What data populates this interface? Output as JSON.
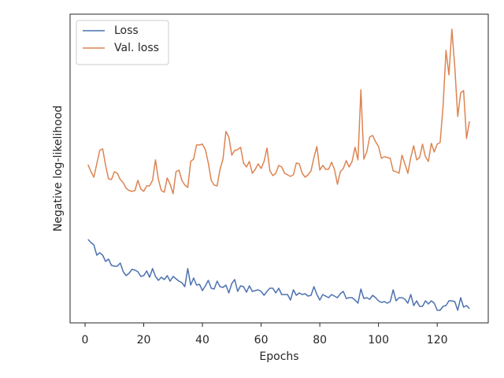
{
  "chart_data": {
    "type": "line",
    "xlabel": "Epochs",
    "ylabel": "Negative log-likelihood",
    "x": [
      1,
      2,
      3,
      4,
      5,
      6,
      7,
      8,
      9,
      10,
      11,
      12,
      13,
      14,
      15,
      16,
      17,
      18,
      19,
      20,
      21,
      22,
      23,
      24,
      25,
      26,
      27,
      28,
      29,
      30,
      31,
      32,
      33,
      34,
      35,
      36,
      37,
      38,
      39,
      40,
      41,
      42,
      43,
      44,
      45,
      46,
      47,
      48,
      49,
      50,
      51,
      52,
      53,
      54,
      55,
      56,
      57,
      58,
      59,
      60,
      61,
      62,
      63,
      64,
      65,
      66,
      67,
      68,
      69,
      70,
      71,
      72,
      73,
      74,
      75,
      76,
      77,
      78,
      79,
      80,
      81,
      82,
      83,
      84,
      85,
      86,
      87,
      88,
      89,
      90,
      91,
      92,
      93,
      94,
      95,
      96,
      97,
      98,
      99,
      100,
      101,
      102,
      103,
      104,
      105,
      106,
      107,
      108,
      109,
      110,
      111,
      112,
      113,
      114,
      115,
      116,
      117,
      118,
      119,
      120,
      121,
      122,
      123,
      124,
      125,
      126,
      127,
      128,
      129,
      130,
      131
    ],
    "series": [
      {
        "name": "Loss",
        "color": "#4c72b0",
        "values": [
          106,
          102,
          99,
          86,
          89,
          86,
          78,
          81,
          73,
          72,
          72,
          76,
          65,
          60,
          63,
          68,
          67,
          65,
          59,
          60,
          66,
          58,
          69,
          59,
          54,
          58,
          55,
          60,
          53,
          59,
          56,
          53,
          51,
          46,
          69,
          48,
          57,
          48,
          49,
          41,
          47,
          54,
          44,
          43,
          53,
          46,
          45,
          48,
          38,
          50,
          55,
          40,
          47,
          46,
          39,
          47,
          40,
          41,
          42,
          40,
          35,
          40,
          44,
          44,
          38,
          44,
          36,
          36,
          36,
          29,
          42,
          35,
          38,
          36,
          37,
          34,
          35,
          46,
          36,
          29,
          36,
          34,
          32,
          36,
          34,
          32,
          37,
          40,
          31,
          32,
          32,
          29,
          25,
          43,
          31,
          32,
          30,
          35,
          32,
          28,
          26,
          27,
          25,
          27,
          42,
          28,
          32,
          32,
          30,
          25,
          36,
          22,
          28,
          21,
          21,
          28,
          24,
          28,
          25,
          16,
          16,
          21,
          22,
          28,
          28,
          27,
          16,
          32,
          20,
          22,
          18
        ]
      },
      {
        "name": "Val. loss",
        "color": "#dd8452",
        "values": [
          201,
          192,
          185,
          202,
          219,
          221,
          200,
          183,
          182,
          192,
          190,
          182,
          178,
          171,
          168,
          167,
          168,
          181,
          170,
          167,
          174,
          174,
          181,
          207,
          182,
          168,
          166,
          184,
          176,
          164,
          192,
          194,
          181,
          175,
          172,
          205,
          208,
          226,
          226,
          227,
          220,
          203,
          181,
          175,
          174,
          195,
          208,
          243,
          236,
          213,
          219,
          220,
          223,
          203,
          198,
          205,
          190,
          195,
          202,
          196,
          205,
          222,
          193,
          187,
          190,
          200,
          198,
          190,
          188,
          186,
          188,
          203,
          202,
          190,
          185,
          188,
          193,
          210,
          224,
          194,
          200,
          195,
          195,
          204,
          195,
          176,
          192,
          196,
          206,
          198,
          205,
          223,
          207,
          296,
          208,
          217,
          236,
          238,
          230,
          224,
          209,
          211,
          210,
          209,
          193,
          192,
          190,
          213,
          202,
          190,
          210,
          225,
          207,
          210,
          227,
          211,
          205,
          228,
          217,
          227,
          229,
          275,
          346,
          315,
          373,
          325,
          262,
          292,
          295,
          234,
          256
        ]
      }
    ],
    "xlim": [
      -5.1,
      137.4
    ],
    "xticks": [
      0,
      20,
      40,
      60,
      80,
      100,
      120
    ],
    "ylim": [
      0,
      392
    ],
    "legend": "upper left"
  }
}
